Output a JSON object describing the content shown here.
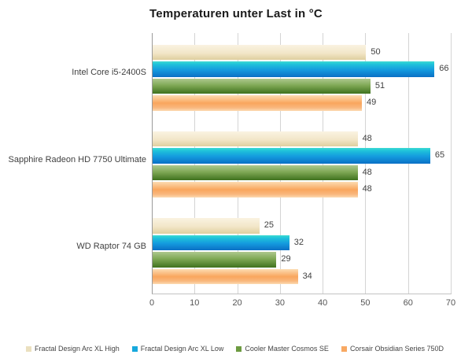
{
  "chart_data": {
    "type": "bar",
    "orientation": "horizontal",
    "title": "Temperaturen unter Last in °C",
    "categories": [
      "Intel Core i5-2400S",
      "Sapphire Radeon HD 7750 Ultimate",
      "WD Raptor 74 GB"
    ],
    "series": [
      {
        "name": "Fractal Design Arc XL High",
        "values": [
          50,
          48,
          25
        ],
        "legend_color": "#ebe0bf",
        "gradient": [
          "#faf3e1 0%",
          "#f2e6c8 55%",
          "#dfcf9f 100%"
        ]
      },
      {
        "name": "Fractal Design Arc XL Low",
        "values": [
          66,
          65,
          32
        ],
        "legend_color": "#17a9dd",
        "gradient": [
          "#3edad2 0%",
          "#1fc2da 18%",
          "#149ade 55%",
          "#0b70c5 100%"
        ]
      },
      {
        "name": "Cooler Master Cosmos SE",
        "values": [
          51,
          48,
          29
        ],
        "legend_color": "#6d9b41",
        "gradient": [
          "#aec88f 0%",
          "#7fa855 45%",
          "#3f721e 100%"
        ]
      },
      {
        "name": "Corsair Obsidian Series 750D",
        "values": [
          49,
          48,
          34
        ],
        "legend_color": "#f8a963",
        "gradient": [
          "#fcdcb2 0%",
          "#f9a65d 50%",
          "#f9b87e 80%",
          "#fcdab2 100%"
        ]
      }
    ],
    "xlim": [
      0,
      70
    ],
    "xticks": [
      0,
      10,
      20,
      30,
      40,
      50,
      60,
      70
    ],
    "xlabel": "",
    "ylabel": "",
    "grid": "vertical",
    "legend_position": "bottom",
    "data_labels": true
  },
  "colors": {
    "background": "#ffffff",
    "gridline": "#d4d4d4",
    "axis_left": "#9a9a9a",
    "axis_bottom": "#c3c3c3",
    "title_text": "#1a1a1a",
    "label_text": "#3f3f3f",
    "tick_text": "#555555",
    "legend_text": "#444444"
  }
}
